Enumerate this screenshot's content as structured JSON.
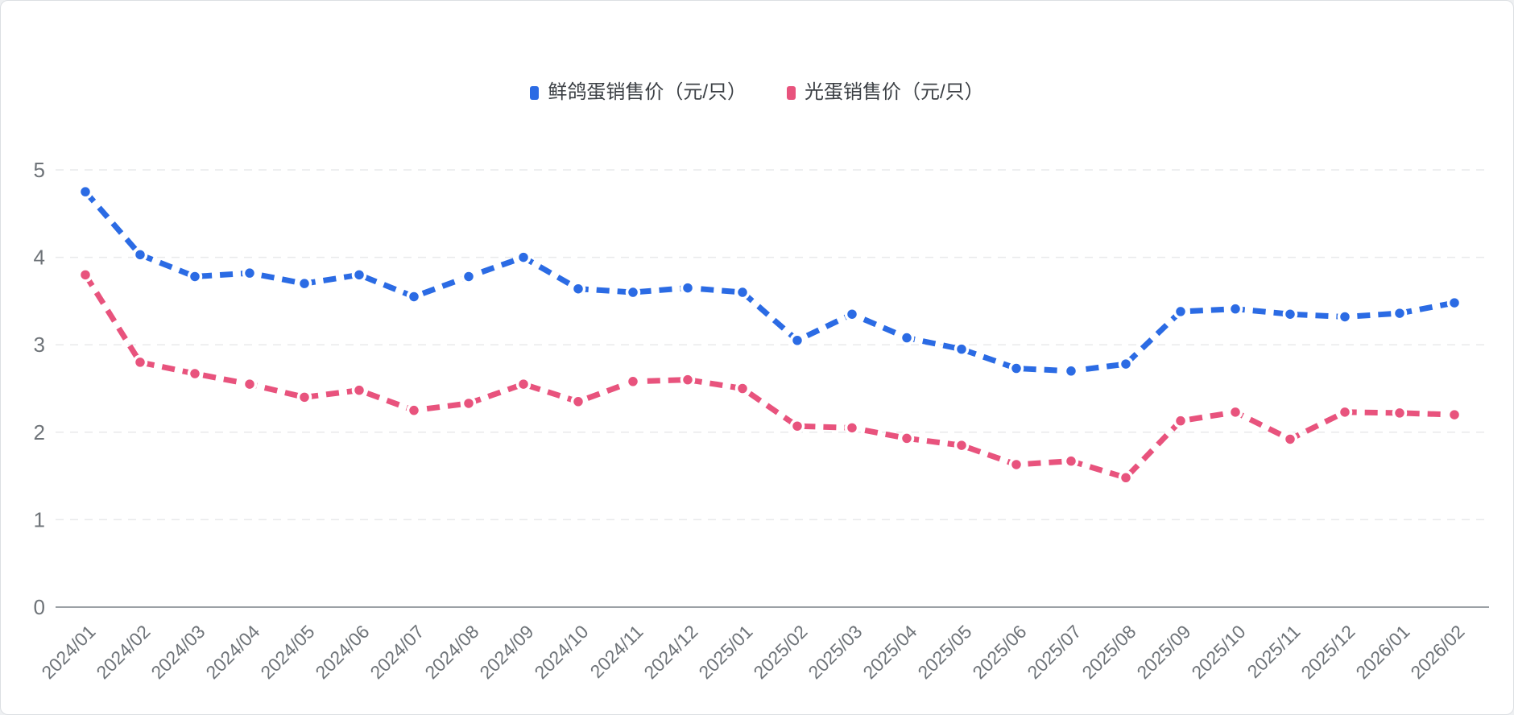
{
  "chart_data": {
    "type": "line",
    "line_style": "dashed",
    "grid": "horizontal-dashed",
    "legend_position": "top-center",
    "xlabel": "",
    "ylabel": "",
    "ylim": [
      0,
      5
    ],
    "yticks": [
      0,
      1,
      2,
      3,
      4,
      5
    ],
    "categories": [
      "2024/01",
      "2024/02",
      "2024/03",
      "2024/04",
      "2024/05",
      "2024/06",
      "2024/07",
      "2024/08",
      "2024/09",
      "2024/10",
      "2024/11",
      "2024/12",
      "2025/01",
      "2025/02",
      "2025/03",
      "2025/04",
      "2025/05",
      "2025/06",
      "2025/07",
      "2025/08",
      "2025/09",
      "2025/10",
      "2025/11",
      "2025/12",
      "2026/01",
      "2026/02"
    ],
    "series": [
      {
        "name": "鲜鸽蛋销售价（元/只）",
        "color": "#2B6BE4",
        "values": [
          4.75,
          4.03,
          3.78,
          3.82,
          3.7,
          3.8,
          3.55,
          3.78,
          4.0,
          3.64,
          3.6,
          3.65,
          3.6,
          3.05,
          3.35,
          3.08,
          2.95,
          2.73,
          2.7,
          2.78,
          3.38,
          3.41,
          3.35,
          3.32,
          3.36,
          3.48
        ]
      },
      {
        "name": "光蛋销售价（元/只）",
        "color": "#E8537D",
        "values": [
          3.8,
          2.8,
          2.67,
          2.55,
          2.4,
          2.48,
          2.25,
          2.33,
          2.55,
          2.35,
          2.58,
          2.6,
          2.5,
          2.07,
          2.05,
          1.93,
          1.85,
          1.63,
          1.67,
          1.48,
          2.13,
          2.23,
          1.92,
          2.23,
          2.22,
          2.2
        ]
      }
    ]
  },
  "colors": {
    "axis_line": "#9ca1a6",
    "gridline": "#e9eaeb",
    "tick_label": "#6e7378",
    "legend_text": "#3c4045",
    "background": "#ffffff"
  }
}
